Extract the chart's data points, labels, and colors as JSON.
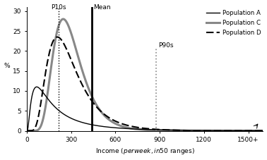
{
  "xlabel": "Income ($ per week, in $50 ranges)",
  "ylabel": "%",
  "xlim": [
    0,
    1600
  ],
  "ylim": [
    0,
    31
  ],
  "xticks": [
    0,
    300,
    600,
    900,
    1200,
    1500
  ],
  "xticklabels": [
    "0",
    "300",
    "600",
    "900",
    "1200",
    "1500+"
  ],
  "yticks": [
    0,
    5,
    10,
    15,
    20,
    25,
    30
  ],
  "p10s_x": 215,
  "mean_x": 440,
  "p90s_x": 875,
  "pop_A_color": "#000000",
  "pop_C_color": "#888888",
  "pop_D_color": "#000000",
  "background": "#ffffff",
  "popA_mu": 5.1,
  "popA_sigma": 0.95,
  "popA_peak": 11.0,
  "popC_mu": 5.65,
  "popC_sigma": 0.38,
  "popC_peak": 28.0,
  "popD_mu": 5.58,
  "popD_sigma": 0.5,
  "popD_peak": 23.5
}
